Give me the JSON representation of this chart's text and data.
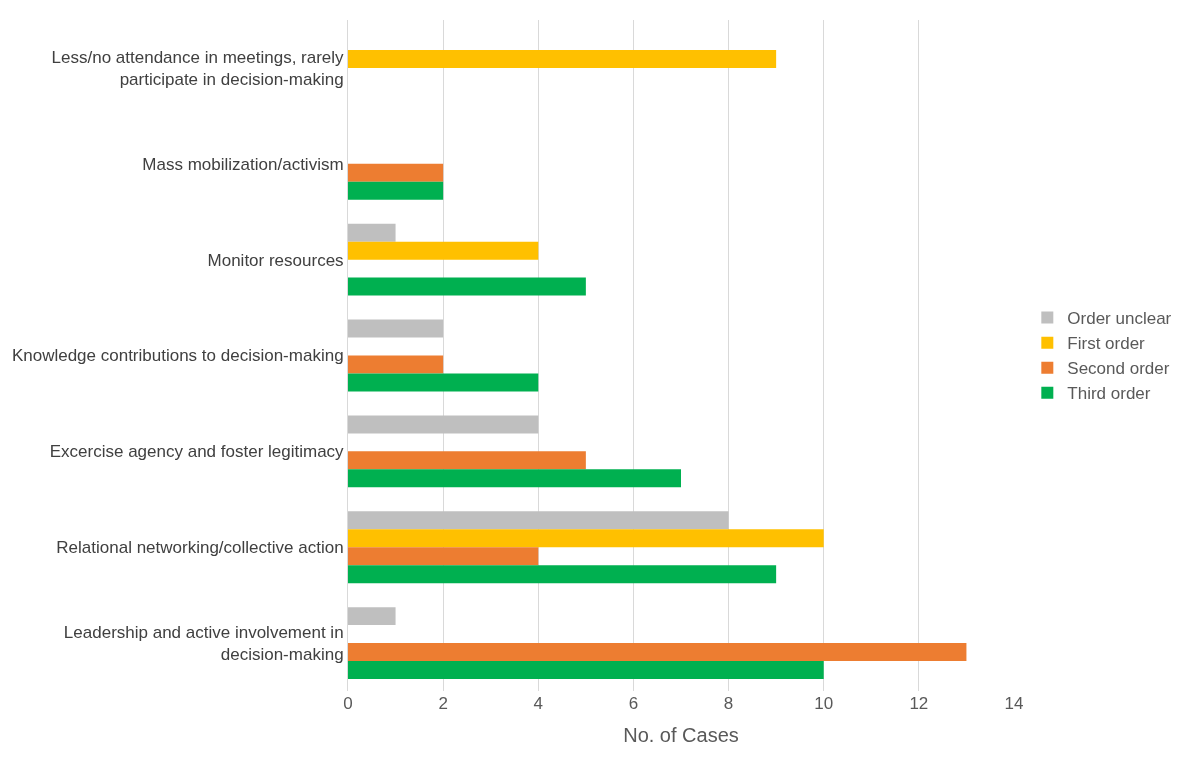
{
  "chart_data": {
    "type": "bar",
    "orientation": "horizontal",
    "xlabel": "No. of Cases",
    "categories": [
      "Less/no attendance in meetings, rarely participate in decision-making",
      "Mass mobilization/activism",
      "Monitor resources",
      "Knowledge contributions to decision-making",
      "Excercise agency and foster legitimacy",
      "Relational networking/collective action",
      "Leadership and active involvement in decision-making"
    ],
    "series": [
      {
        "name": "Order unclear",
        "color": "#bfbfbf",
        "values": [
          null,
          null,
          1,
          2,
          4,
          8,
          1
        ]
      },
      {
        "name": "First order",
        "color": "#ffc000",
        "values": [
          9,
          null,
          4,
          null,
          null,
          10,
          null
        ]
      },
      {
        "name": "Second order",
        "color": "#ed7d31",
        "values": [
          null,
          2,
          null,
          2,
          5,
          4,
          13
        ]
      },
      {
        "name": "Third order",
        "color": "#00b050",
        "values": [
          null,
          2,
          5,
          4,
          7,
          9,
          10
        ]
      }
    ],
    "xlim": [
      0,
      14
    ],
    "xticks": [
      0,
      2,
      4,
      6,
      8,
      10,
      12,
      14
    ],
    "grid": "x",
    "legend": "right"
  }
}
